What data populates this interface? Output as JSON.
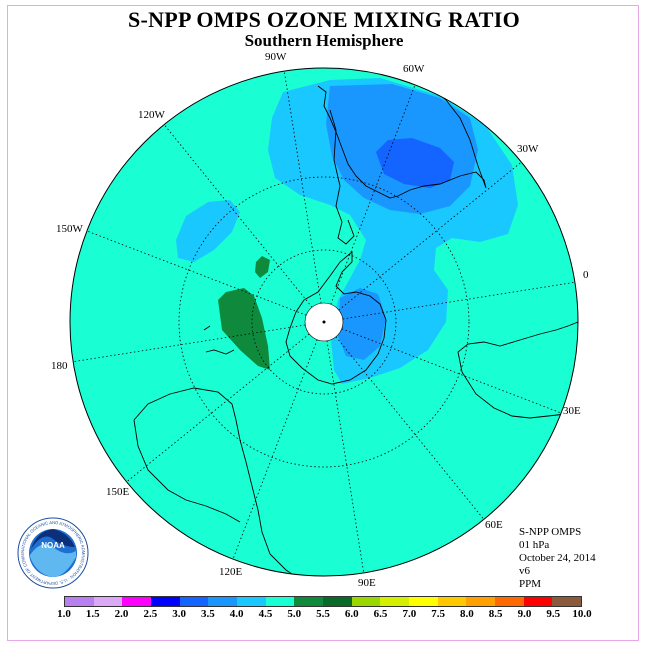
{
  "header": {
    "title": "S-NPP OMPS OZONE MIXING RATIO",
    "subtitle": "Southern Hemisphere"
  },
  "map": {
    "projection": "south-polar-stereographic",
    "longitude_labels": [
      "0",
      "30E",
      "60E",
      "90E",
      "120E",
      "150E",
      "180",
      "150W",
      "120W",
      "90W",
      "60W",
      "30W"
    ],
    "background_value": "5.0-5.5",
    "colors": {
      "ocean_field": "#19ffd3",
      "light_blue": "#19c8ff",
      "medium_blue": "#1a96ff",
      "deep_blue": "#1464ff",
      "green": "#0f8a3c",
      "no_data": "#ffffff",
      "coastline": "#000000"
    }
  },
  "info": {
    "instrument": "S-NPP OMPS",
    "level": "01 hPa",
    "date": "October 24, 2014",
    "version": "v6",
    "units": "PPM"
  },
  "colorbar": {
    "colors": [
      "#b87ff0",
      "#dba8f5",
      "#ff00ff",
      "#0000ff",
      "#1464ff",
      "#1a96ff",
      "#19c8ff",
      "#19ffd3",
      "#0f8a3c",
      "#0a6a2a",
      "#9ad600",
      "#d4f000",
      "#ffff00",
      "#ffc800",
      "#ffa000",
      "#ff6a00",
      "#ff0000",
      "#8b5a3c"
    ],
    "ticks": [
      "1.0",
      "1.5",
      "2.0",
      "2.5",
      "3.0",
      "3.5",
      "4.0",
      "4.5",
      "5.0",
      "5.5",
      "6.0",
      "6.5",
      "7.0",
      "7.5",
      "8.0",
      "8.5",
      "9.0",
      "9.5",
      "10.0"
    ]
  },
  "logo": {
    "text": "NOAA",
    "ring_text": "NATIONAL OCEANIC AND ATMOSPHERIC ADMINISTRATION · U.S. DEPARTMENT OF COMMERCE"
  }
}
